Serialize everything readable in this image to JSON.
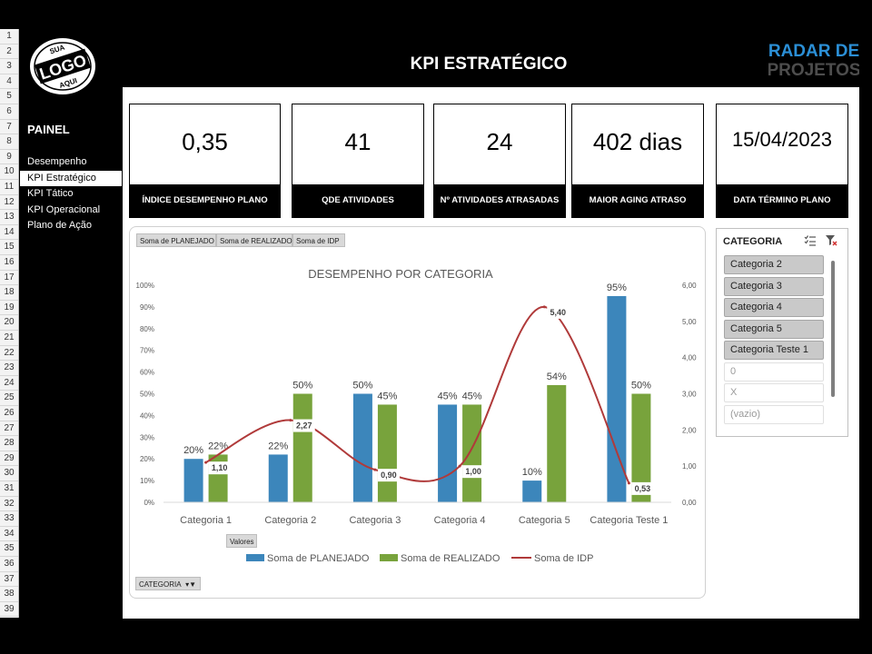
{
  "header": {
    "title": "KPI ESTRATÉGICO"
  },
  "logo": {
    "top": "SUA",
    "main": "LOGO",
    "bottom": "AQUI"
  },
  "brand": {
    "line1": "RADAR DE",
    "line2": "PROJETOS"
  },
  "row_numbers": [
    "1",
    "2",
    "3",
    "4",
    "5",
    "6",
    "7",
    "8",
    "9",
    "10",
    "11",
    "12",
    "13",
    "14",
    "15",
    "16",
    "17",
    "18",
    "19",
    "20",
    "21",
    "22",
    "23",
    "24",
    "25",
    "26",
    "27",
    "28",
    "29",
    "30",
    "31",
    "32",
    "33",
    "34",
    "35",
    "36",
    "37",
    "38",
    "39"
  ],
  "sidebar": {
    "title": "PAINEL",
    "items": [
      {
        "label": "Desempenho"
      },
      {
        "label": "KPI Estratégico"
      },
      {
        "label": "KPI Tático"
      },
      {
        "label": "KPI Operacional"
      },
      {
        "label": "Plano de Ação"
      }
    ],
    "active_index": 1
  },
  "kpis": [
    {
      "value": "0,35",
      "label": "ÍNDICE DESEMPENHO PLANO"
    },
    {
      "value": "41",
      "label": "QDE ATIVIDADES"
    },
    {
      "value": "24",
      "label": "Nº ATIVIDADES ATRASADAS"
    },
    {
      "value": "402 dias",
      "label": "MAIOR AGING ATRASO"
    },
    {
      "value": "15/04/2023",
      "label": "DATA TÉRMINO PLANO"
    }
  ],
  "pivot": {
    "value_buttons": [
      "Soma de PLANEJADO",
      "Soma de REALIZADO",
      "Soma de IDP"
    ],
    "values_button": "Valores",
    "category_button": "CATEGORIA"
  },
  "slicer": {
    "title": "CATEGORIA",
    "items": [
      {
        "label": "Categoria 2",
        "selected": true
      },
      {
        "label": "Categoria 3",
        "selected": true
      },
      {
        "label": "Categoria 4",
        "selected": true
      },
      {
        "label": "Categoria 5",
        "selected": true
      },
      {
        "label": "Categoria Teste 1",
        "selected": true
      },
      {
        "label": "0",
        "selected": false
      },
      {
        "label": "X",
        "selected": false
      },
      {
        "label": "(vazio)",
        "selected": false
      }
    ]
  },
  "colors": {
    "planejado": "#3c86bb",
    "realizado": "#78a33c",
    "idp": "#b03a3a",
    "accent": "#000000"
  },
  "chart_data": {
    "type": "bar",
    "title": "DESEMPENHO POR CATEGORIA",
    "categories": [
      "Categoria 1",
      "Categoria 2",
      "Categoria 3",
      "Categoria 4",
      "Categoria 5",
      "Categoria Teste 1"
    ],
    "series": [
      {
        "name": "Soma de PLANEJADO",
        "type": "bar",
        "axis": "left",
        "values": [
          0.2,
          0.22,
          0.5,
          0.45,
          0.1,
          0.95
        ],
        "labels": [
          "20%",
          "22%",
          "50%",
          "45%",
          "10%",
          "95%"
        ]
      },
      {
        "name": "Soma de REALIZADO",
        "type": "bar",
        "axis": "left",
        "values": [
          0.22,
          0.5,
          0.45,
          0.45,
          0.54,
          0.5
        ],
        "labels": [
          "22%",
          "50%",
          "45%",
          "45%",
          "54%",
          "50%"
        ]
      },
      {
        "name": "Soma de IDP",
        "type": "line",
        "smooth": true,
        "axis": "right",
        "values": [
          1.1,
          2.27,
          0.9,
          1.0,
          5.4,
          0.53
        ],
        "labels": [
          "1,10",
          "2,27",
          "0,90",
          "1,00",
          "5,40",
          "0,53"
        ]
      }
    ],
    "y_left": {
      "min": 0,
      "max": 1,
      "ticks": [
        "0%",
        "10%",
        "20%",
        "30%",
        "40%",
        "50%",
        "60%",
        "70%",
        "80%",
        "90%",
        "100%"
      ]
    },
    "y_right": {
      "min": 0,
      "max": 6,
      "ticks": [
        "0,00",
        "1,00",
        "2,00",
        "3,00",
        "4,00",
        "5,00",
        "6,00"
      ]
    },
    "legend_position": "bottom",
    "grid": false
  }
}
